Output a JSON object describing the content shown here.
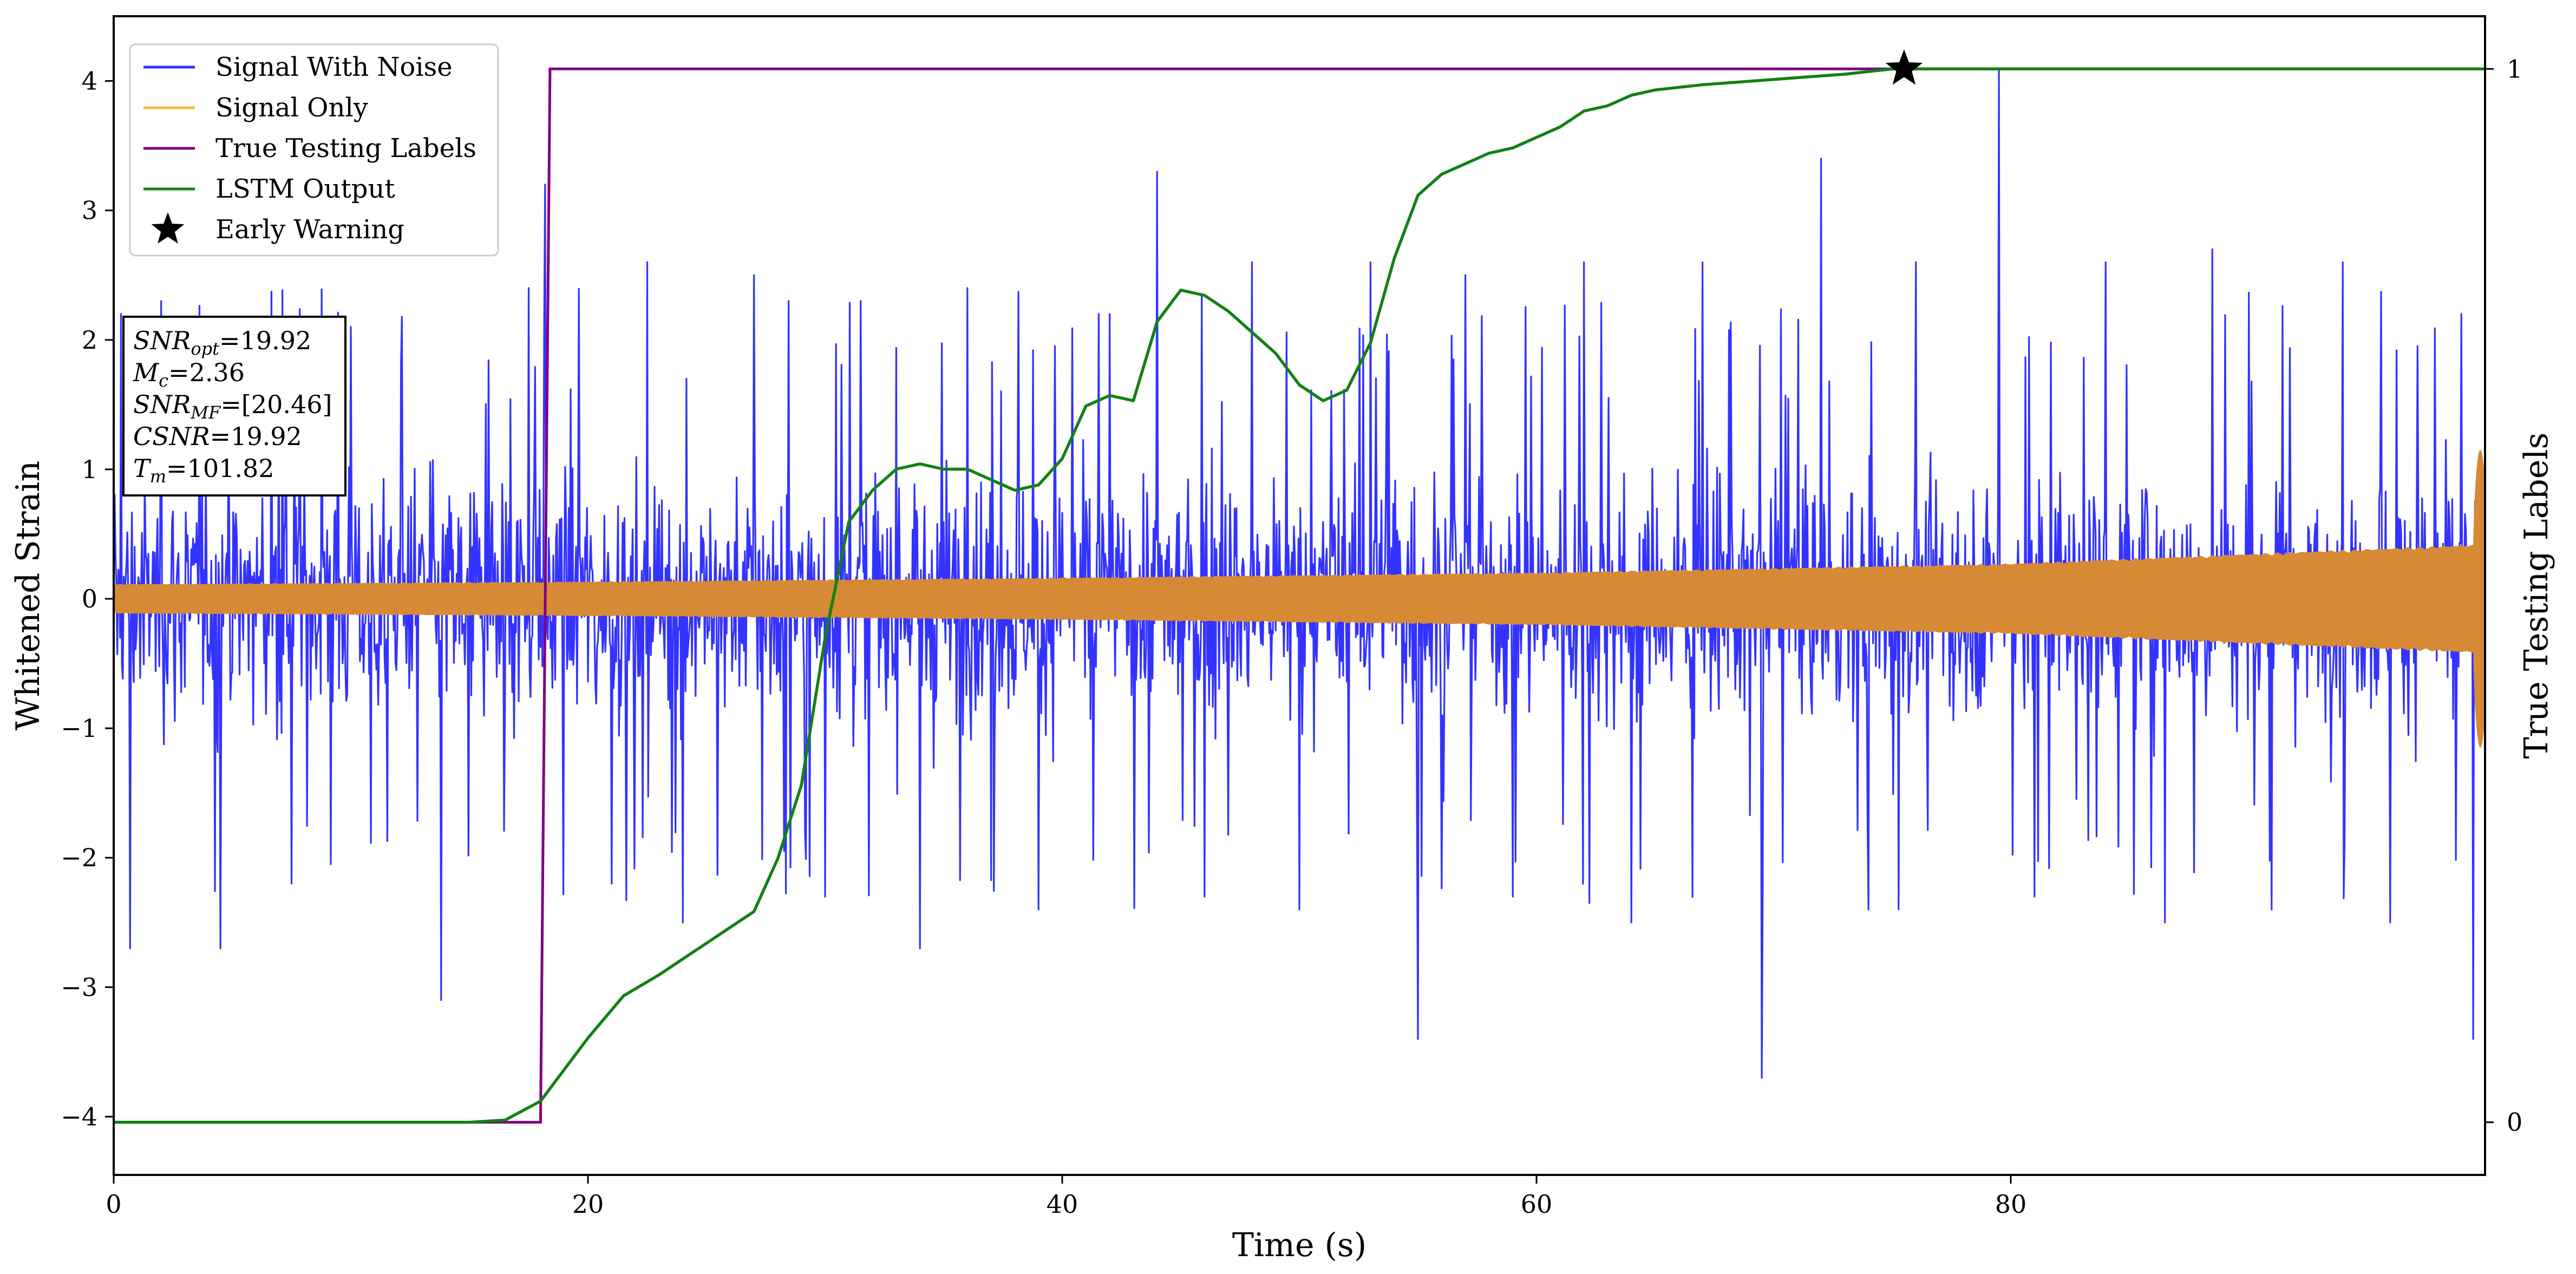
{
  "chart_data": {
    "type": "line",
    "xlabel": "Time (s)",
    "ylabel": "Whitened Strain",
    "ylabel_right": "True Testing Labels",
    "xlim": [
      0,
      100
    ],
    "ylim": [
      -4.45,
      4.5
    ],
    "ylim_right": [
      -0.05,
      1.05
    ],
    "x_ticks": [
      0,
      20,
      40,
      60,
      80
    ],
    "y_ticks": [
      -4,
      -3,
      -2,
      -1,
      0,
      1,
      2,
      3,
      4
    ],
    "y_ticks_right": [
      0,
      1
    ],
    "x_tick_labels": [
      "0",
      "20",
      "40",
      "60",
      "80"
    ],
    "y_tick_labels": [
      "−4",
      "−3",
      "−2",
      "−1",
      "0",
      "1",
      "2",
      "3",
      "4"
    ],
    "y_tick_labels_right": [
      "0",
      "1"
    ],
    "grid": false,
    "legend_position": "top-left",
    "legend": [
      {
        "label": "Signal With Noise",
        "color": "#3333ff",
        "marker": "line"
      },
      {
        "label": "Signal Only",
        "color": "#f5b642",
        "marker": "line"
      },
      {
        "label": "True Testing Labels",
        "color": "#800080",
        "marker": "line"
      },
      {
        "label": "LSTM Output",
        "color": "#138013",
        "marker": "line"
      },
      {
        "label": "Early Warning",
        "color": "#000000",
        "marker": "star"
      }
    ],
    "series": [
      {
        "name": "Signal With Noise",
        "axis": "left",
        "color": "#3333ff",
        "band_typical": 1.5,
        "spikes": [
          [
            0.3,
            2.2
          ],
          [
            0.7,
            -2.7
          ],
          [
            2.0,
            2.3
          ],
          [
            4.5,
            -2.7
          ],
          [
            7.5,
            -2.2
          ],
          [
            10.0,
            2.1
          ],
          [
            13.8,
            -3.1
          ],
          [
            17.5,
            2.4
          ],
          [
            18.2,
            3.2
          ],
          [
            21.0,
            -2.2
          ],
          [
            22.5,
            2.6
          ],
          [
            24.0,
            -2.5
          ],
          [
            27.0,
            2.5
          ],
          [
            30.0,
            -2.3
          ],
          [
            31.5,
            2.3
          ],
          [
            34.0,
            -2.7
          ],
          [
            36.0,
            2.4
          ],
          [
            39.0,
            -2.4
          ],
          [
            42.0,
            2.2
          ],
          [
            44.0,
            3.3
          ],
          [
            46.0,
            -2.3
          ],
          [
            48.0,
            2.6
          ],
          [
            50.0,
            -2.4
          ],
          [
            53.0,
            2.6
          ],
          [
            55.0,
            -3.4
          ],
          [
            57.0,
            2.5
          ],
          [
            59.0,
            -2.3
          ],
          [
            62.0,
            2.6
          ],
          [
            64.0,
            -2.5
          ],
          [
            67.0,
            2.6
          ],
          [
            69.5,
            -3.7
          ],
          [
            72.0,
            3.4
          ],
          [
            74.0,
            -2.4
          ],
          [
            76.0,
            2.6
          ],
          [
            79.5,
            4.1
          ],
          [
            81.0,
            -2.3
          ],
          [
            84.0,
            2.6
          ],
          [
            86.5,
            -2.5
          ],
          [
            88.5,
            2.7
          ],
          [
            91.0,
            -2.4
          ],
          [
            94.0,
            2.6
          ],
          [
            96.0,
            -2.5
          ],
          [
            99.5,
            -3.4
          ]
        ]
      },
      {
        "name": "Signal Only",
        "axis": "left",
        "color": "#f5b642",
        "envelope": {
          "x": [
            0,
            20,
            40,
            60,
            80,
            100
          ],
          "amplitude": [
            0.11,
            0.13,
            0.16,
            0.2,
            0.27,
            0.42
          ]
        }
      },
      {
        "name": "True Testing Labels",
        "axis": "right",
        "color": "#800080",
        "x": [
          0,
          18.0,
          18.4,
          100
        ],
        "y": [
          0,
          0,
          1,
          1
        ]
      },
      {
        "name": "LSTM Output",
        "axis": "right",
        "color": "#138013",
        "x": [
          0,
          15.0,
          16.5,
          18.0,
          20.0,
          21.5,
          23.0,
          25.0,
          27.0,
          28.0,
          29.0,
          30.0,
          31.0,
          32.0,
          33.0,
          34.0,
          35.0,
          36.0,
          37.0,
          38.0,
          39.0,
          40.0,
          41.0,
          42.0,
          43.0,
          44.0,
          45.0,
          46.0,
          47.0,
          48.0,
          49.0,
          50.0,
          51.0,
          52.0,
          53.0,
          54.0,
          55.0,
          56.0,
          57.0,
          58.0,
          59.0,
          60.0,
          61.0,
          62.0,
          63.0,
          64.0,
          65.0,
          67.0,
          70.0,
          73.0,
          75.0,
          80.0,
          90.0,
          100.0
        ],
        "y": [
          0,
          0,
          0.002,
          0.02,
          0.08,
          0.12,
          0.14,
          0.17,
          0.2,
          0.25,
          0.32,
          0.46,
          0.57,
          0.6,
          0.62,
          0.625,
          0.62,
          0.62,
          0.61,
          0.6,
          0.605,
          0.63,
          0.68,
          0.69,
          0.685,
          0.76,
          0.79,
          0.785,
          0.77,
          0.75,
          0.73,
          0.7,
          0.685,
          0.695,
          0.74,
          0.82,
          0.88,
          0.9,
          0.91,
          0.92,
          0.925,
          0.935,
          0.945,
          0.96,
          0.965,
          0.975,
          0.98,
          0.985,
          0.99,
          0.995,
          1.0,
          1.0,
          1.0,
          1.0
        ]
      },
      {
        "name": "Early Warning",
        "axis": "right",
        "color": "#000000",
        "marker": "star",
        "x": [
          75.5
        ],
        "y": [
          1.0
        ]
      }
    ],
    "annotation_box": {
      "position": "left",
      "lines": [
        {
          "base": "SNR",
          "sub": "opt",
          "value": "=19.92"
        },
        {
          "base": "M",
          "sub": "c",
          "value": "=2.36"
        },
        {
          "base": "SNR",
          "sub": "MF",
          "value": "=[20.46]"
        },
        {
          "base": "CSNR",
          "sub": "",
          "value": "=19.92"
        },
        {
          "base": "T",
          "sub": "m",
          "value": "=101.82"
        }
      ]
    }
  }
}
